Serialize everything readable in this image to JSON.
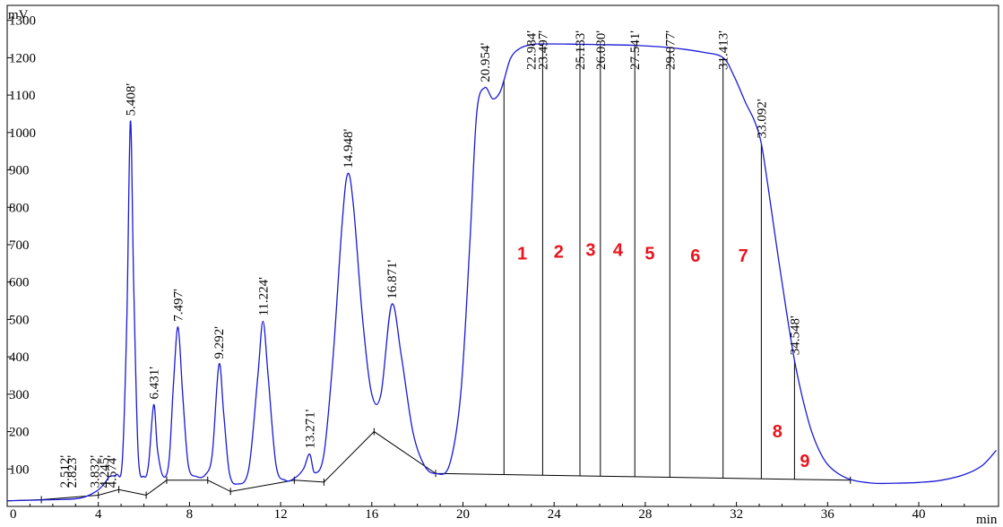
{
  "chart_data": {
    "type": "line",
    "ylabel": "mV",
    "xlabel": "min",
    "xlim": [
      0,
      43.5
    ],
    "ylim": [
      0,
      1340
    ],
    "x_ticks": [
      "0",
      "4",
      "8",
      "12",
      "16",
      "20",
      "24",
      "28",
      "32",
      "36",
      "40"
    ],
    "x_tick_values": [
      0,
      4,
      8,
      12,
      16,
      20,
      24,
      28,
      32,
      36,
      40
    ],
    "y_ticks": [
      "100",
      "200",
      "300",
      "400",
      "500",
      "600",
      "700",
      "800",
      "900",
      "1000",
      "1100",
      "1200",
      "1300"
    ],
    "y_tick_values": [
      100,
      200,
      300,
      400,
      500,
      600,
      700,
      800,
      900,
      1000,
      1100,
      1200,
      1300
    ],
    "series": [
      {
        "color": "#1a1ad6",
        "x": [
          0,
          2,
          3.2,
          3.9,
          4.25,
          4.5,
          4.8,
          5.05,
          5.25,
          5.408,
          5.55,
          5.75,
          6.0,
          6.2,
          6.431,
          6.6,
          6.85,
          7.1,
          7.3,
          7.497,
          7.7,
          7.95,
          8.3,
          8.7,
          9.0,
          9.292,
          9.5,
          9.75,
          10.1,
          10.6,
          11.0,
          11.224,
          11.45,
          11.8,
          12.2,
          12.6,
          13.0,
          13.271,
          13.5,
          13.9,
          14.3,
          14.7,
          14.948,
          15.2,
          15.6,
          16.0,
          16.4,
          16.871,
          17.3,
          17.8,
          18.3,
          18.8,
          19.4,
          19.9,
          20.3,
          20.6,
          20.954,
          21.3,
          21.6,
          21.8,
          22.1,
          22.5,
          22.984,
          23.497,
          25.133,
          26.03,
          27.541,
          29.077,
          30.5,
          31.413,
          31.9,
          32.4,
          32.8,
          33.092,
          33.4,
          33.8,
          34.2,
          34.548,
          34.9,
          35.3,
          35.8,
          36.3,
          37.0,
          38.0,
          39.0,
          40.0,
          41.0,
          42.0,
          42.8,
          43.4
        ],
        "y": [
          15,
          18,
          22,
          40,
          60,
          80,
          85,
          120,
          500,
          1030,
          600,
          140,
          80,
          110,
          272,
          150,
          80,
          120,
          330,
          480,
          300,
          110,
          80,
          85,
          140,
          380,
          250,
          90,
          60,
          100,
          350,
          495,
          350,
          110,
          70,
          75,
          100,
          140,
          90,
          140,
          400,
          760,
          890,
          800,
          500,
          300,
          300,
          540,
          400,
          200,
          110,
          88,
          110,
          300,
          700,
          1050,
          1120,
          1090,
          1105,
          1140,
          1200,
          1225,
          1235,
          1237,
          1236,
          1235,
          1233,
          1227,
          1215,
          1200,
          1150,
          1080,
          1030,
          970,
          850,
          680,
          520,
          390,
          290,
          200,
          130,
          95,
          72,
          62,
          62,
          64,
          70,
          85,
          110,
          150
        ]
      }
    ],
    "baseline": {
      "x": [
        0,
        1.5,
        4.0,
        4.9,
        6.1,
        7.0,
        8.8,
        9.8,
        12.6,
        13.9,
        16.1,
        18.8,
        37.0
      ],
      "y": [
        15,
        18,
        30,
        45,
        30,
        70,
        70,
        40,
        70,
        65,
        200,
        88,
        70
      ]
    },
    "peak_labels": [
      {
        "x": 2.512,
        "text": "2.512'"
      },
      {
        "x": 2.823,
        "text": "2.823'"
      },
      {
        "x": 3.832,
        "text": "3.832'"
      },
      {
        "x": 4.245,
        "text": "4.245'"
      },
      {
        "x": 4.574,
        "text": "4.574'"
      },
      {
        "x": 5.408,
        "text": "5.408'"
      },
      {
        "x": 6.431,
        "text": "6.431'"
      },
      {
        "x": 7.497,
        "text": "7.497'"
      },
      {
        "x": 9.292,
        "text": "9.292'"
      },
      {
        "x": 11.224,
        "text": "11.224'"
      },
      {
        "x": 13.271,
        "text": "13.271'"
      },
      {
        "x": 14.948,
        "text": "14.948'"
      },
      {
        "x": 16.871,
        "text": "16.871'"
      },
      {
        "x": 20.954,
        "text": "20.954'"
      },
      {
        "x": 22.984,
        "text": "22.984'"
      },
      {
        "x": 23.497,
        "text": "23.497'"
      },
      {
        "x": 25.133,
        "text": "25.133'"
      },
      {
        "x": 26.03,
        "text": "26.030'"
      },
      {
        "x": 27.541,
        "text": "27.541'"
      },
      {
        "x": 29.077,
        "text": "29.077'"
      },
      {
        "x": 31.413,
        "text": "31.413'"
      },
      {
        "x": 33.092,
        "text": "33.092'"
      },
      {
        "x": 34.548,
        "text": "34.548'"
      }
    ],
    "fraction_cuts": [
      21.8,
      23.497,
      25.133,
      26.03,
      27.541,
      29.077,
      31.413,
      33.092,
      34.548
    ],
    "fraction_labels": [
      {
        "text": "1",
        "x": 22.6,
        "y": 660
      },
      {
        "text": "2",
        "x": 24.2,
        "y": 665
      },
      {
        "text": "3",
        "x": 25.6,
        "y": 670
      },
      {
        "text": "4",
        "x": 26.8,
        "y": 670
      },
      {
        "text": "5",
        "x": 28.2,
        "y": 660
      },
      {
        "text": "6",
        "x": 30.2,
        "y": 655
      },
      {
        "text": "7",
        "x": 32.3,
        "y": 655
      },
      {
        "text": "8",
        "x": 33.8,
        "y": 185
      },
      {
        "text": "9",
        "x": 35.0,
        "y": 105
      }
    ]
  }
}
